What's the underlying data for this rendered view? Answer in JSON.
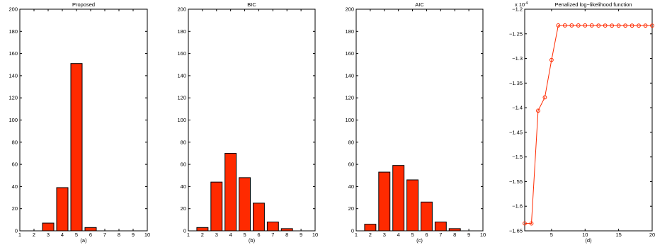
{
  "chart_data": [
    {
      "type": "bar",
      "title": "Proposed",
      "xlabel": "(a)",
      "ylabel": "",
      "x": [
        1,
        2,
        3,
        4,
        5,
        6,
        7,
        8,
        9,
        10
      ],
      "values": [
        0,
        0,
        7,
        39,
        151,
        3,
        0,
        0,
        0,
        0
      ],
      "xlim": [
        1,
        10
      ],
      "ylim": [
        0,
        200
      ],
      "xticks": [
        "1",
        "2",
        "3",
        "4",
        "5",
        "6",
        "7",
        "8",
        "9",
        "10"
      ],
      "yticks": [
        "0",
        "20",
        "40",
        "60",
        "80",
        "100",
        "120",
        "140",
        "160",
        "180",
        "200"
      ],
      "color": "#ff2a00",
      "grid": false
    },
    {
      "type": "bar",
      "title": "BIC",
      "xlabel": "(b)",
      "ylabel": "",
      "x": [
        1,
        2,
        3,
        4,
        5,
        6,
        7,
        8,
        9,
        10
      ],
      "values": [
        0,
        3,
        44,
        70,
        48,
        25,
        8,
        2,
        0,
        0
      ],
      "xlim": [
        1,
        10
      ],
      "ylim": [
        0,
        200
      ],
      "xticks": [
        "1",
        "2",
        "3",
        "4",
        "5",
        "6",
        "7",
        "8",
        "9",
        "10"
      ],
      "yticks": [
        "0",
        "20",
        "40",
        "60",
        "80",
        "100",
        "120",
        "140",
        "160",
        "180",
        "200"
      ],
      "color": "#ff2a00",
      "grid": false
    },
    {
      "type": "bar",
      "title": "AIC",
      "xlabel": "(c)",
      "ylabel": "",
      "x": [
        1,
        2,
        3,
        4,
        5,
        6,
        7,
        8,
        9,
        10
      ],
      "values": [
        0,
        6,
        53,
        59,
        46,
        26,
        8,
        2,
        0,
        0
      ],
      "xlim": [
        1,
        10
      ],
      "ylim": [
        0,
        200
      ],
      "xticks": [
        "1",
        "2",
        "3",
        "4",
        "5",
        "6",
        "7",
        "8",
        "9",
        "10"
      ],
      "yticks": [
        "0",
        "20",
        "40",
        "60",
        "80",
        "100",
        "120",
        "140",
        "160",
        "180",
        "200"
      ],
      "color": "#ff2a00",
      "grid": false
    },
    {
      "type": "line",
      "title": "Penalized log−likelihood function",
      "exponent_label": "x 10",
      "exponent_power": "4",
      "xlabel": "(d)",
      "ylabel": "",
      "x": [
        1,
        2,
        3,
        4,
        5,
        6,
        7,
        8,
        9,
        10,
        11,
        12,
        13,
        14,
        15,
        16,
        17,
        18,
        19,
        20
      ],
      "y": [
        -1.635,
        -1.635,
        -1.406,
        -1.379,
        -1.303,
        -1.233,
        -1.233,
        -1.233,
        -1.233,
        -1.233,
        -1.233,
        -1.2332,
        -1.2332,
        -1.2333,
        -1.2333,
        -1.2333,
        -1.2333,
        -1.2333,
        -1.2333,
        -1.2333
      ],
      "xlim": [
        1,
        20
      ],
      "ylim": [
        -1.65,
        -1.2
      ],
      "xticks": [
        "5",
        "10",
        "15",
        "20"
      ],
      "yticks": [
        "−1.65",
        "−1.6",
        "−1.55",
        "−1.5",
        "−1.45",
        "−1.4",
        "−1.35",
        "−1.3",
        "−1.25",
        "−1.2"
      ],
      "marker": "circle",
      "color": "#ff2a00",
      "grid": false
    }
  ]
}
